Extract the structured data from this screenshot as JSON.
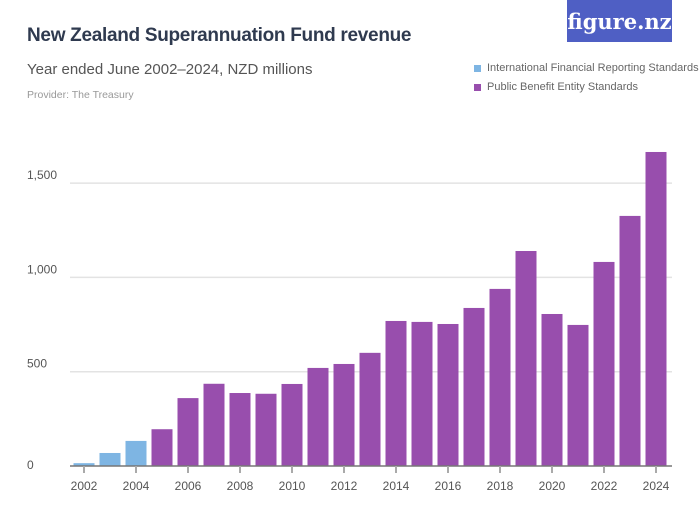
{
  "header": {
    "title": "New Zealand Superannuation Fund revenue",
    "subtitle": "Year ended June 2002–2024, NZD millions",
    "provider": "Provider: The Treasury",
    "logo": "figure.nz"
  },
  "chart_data": {
    "type": "bar",
    "title": "New Zealand Superannuation Fund revenue",
    "subtitle": "Year ended June 2002–2024, NZD millions",
    "categories": [
      "2002",
      "2003",
      "2004",
      "2005",
      "2006",
      "2007",
      "2008",
      "2009",
      "2010",
      "2011",
      "2012",
      "2013",
      "2014",
      "2015",
      "2016",
      "2017",
      "2018",
      "2019",
      "2020",
      "2021",
      "2022",
      "2023",
      "2024"
    ],
    "values": [
      15,
      69,
      133,
      195,
      360,
      436,
      387,
      383,
      435,
      520,
      541,
      600,
      769,
      764,
      753,
      838,
      939,
      1140,
      806,
      748,
      1082,
      1326,
      1665
    ],
    "series_by_bar": [
      "International Financial Reporting Standards",
      "International Financial Reporting Standards",
      "International Financial Reporting Standards",
      "Public Benefit Entity Standards",
      "Public Benefit Entity Standards",
      "Public Benefit Entity Standards",
      "Public Benefit Entity Standards",
      "Public Benefit Entity Standards",
      "Public Benefit Entity Standards",
      "Public Benefit Entity Standards",
      "Public Benefit Entity Standards",
      "Public Benefit Entity Standards",
      "Public Benefit Entity Standards",
      "Public Benefit Entity Standards",
      "Public Benefit Entity Standards",
      "Public Benefit Entity Standards",
      "Public Benefit Entity Standards",
      "Public Benefit Entity Standards",
      "Public Benefit Entity Standards",
      "Public Benefit Entity Standards",
      "Public Benefit Entity Standards",
      "Public Benefit Entity Standards",
      "Public Benefit Entity Standards"
    ],
    "legend": [
      {
        "name": "International Financial Reporting Standards",
        "color": "#7eb5e3"
      },
      {
        "name": "Public Benefit Entity Standards",
        "color": "#984ead"
      }
    ],
    "legend_position": "top-right",
    "xtick_labels": [
      "2002",
      "2004",
      "2006",
      "2008",
      "2010",
      "2012",
      "2014",
      "2016",
      "2018",
      "2020",
      "2022",
      "2024"
    ],
    "ytick_labels": [
      "0",
      "500",
      "1,000",
      "1,500"
    ],
    "yticks": [
      0,
      500,
      1000,
      1500
    ],
    "ylim": [
      0,
      1750
    ],
    "grid": true
  }
}
